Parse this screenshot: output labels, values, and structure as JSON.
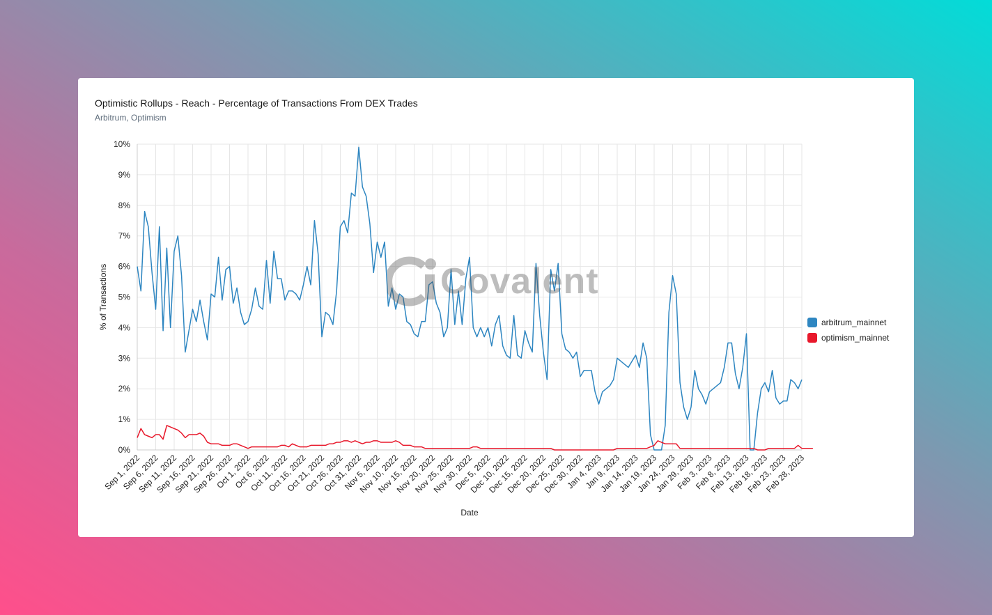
{
  "card": {
    "title": "Optimistic Rollups - Reach - Percentage of Transactions From DEX Trades",
    "subtitle": "Arbitrum, Optimism"
  },
  "watermark": {
    "text": "Covalent"
  },
  "chart_data": {
    "type": "line",
    "xlabel": "Date",
    "ylabel": "% of Transactions",
    "ylim": [
      0,
      10
    ],
    "y_ticks": [
      "0%",
      "1%",
      "2%",
      "3%",
      "4%",
      "5%",
      "6%",
      "7%",
      "8%",
      "9%",
      "10%"
    ],
    "x_tick_labels": [
      "Sep 1, 2022",
      "Sep 6, 2022",
      "Sep 11, 2022",
      "Sep 16, 2022",
      "Sep 21, 2022",
      "Sep 26, 2022",
      "Oct 1, 2022",
      "Oct 6, 2022",
      "Oct 11, 2022",
      "Oct 16, 2022",
      "Oct 21, 2022",
      "Oct 26, 2022",
      "Oct 31, 2022",
      "Nov 5, 2022",
      "Nov 10, 2022",
      "Nov 15, 2022",
      "Nov 20, 2022",
      "Nov 25, 2022",
      "Nov 30, 2022",
      "Dec 5, 2022",
      "Dec 10, 2022",
      "Dec 15, 2022",
      "Dec 20, 2022",
      "Dec 25, 2022",
      "Dec 30, 2022",
      "Jan 4, 2023",
      "Jan 9, 2023",
      "Jan 14, 2023",
      "Jan 19, 2023",
      "Jan 24, 2023",
      "Jan 29, 2023",
      "Feb 3, 2023",
      "Feb 8, 2023",
      "Feb 13, 2023",
      "Feb 18, 2023",
      "Feb 23, 2023",
      "Feb 28, 2023"
    ],
    "x_start": "2022-09-01",
    "x_end": "2023-02-28",
    "grid": true,
    "legend_position": "right",
    "series": [
      {
        "name": "arbitrum_mainnet",
        "color": "#2e86c1",
        "values": [
          6.0,
          5.2,
          7.8,
          7.3,
          5.8,
          4.6,
          7.3,
          3.9,
          6.6,
          4.0,
          6.5,
          7.0,
          5.7,
          3.2,
          3.9,
          4.6,
          4.2,
          4.9,
          4.2,
          3.6,
          5.1,
          5.0,
          6.3,
          4.9,
          5.9,
          6.0,
          4.8,
          5.3,
          4.5,
          4.1,
          4.2,
          4.6,
          5.3,
          4.7,
          4.6,
          6.2,
          4.8,
          6.5,
          5.6,
          5.6,
          4.9,
          5.2,
          5.2,
          5.1,
          4.9,
          5.4,
          6.0,
          5.4,
          7.5,
          6.4,
          3.7,
          4.5,
          4.4,
          4.1,
          5.2,
          7.3,
          7.5,
          7.1,
          8.4,
          8.3,
          9.9,
          8.6,
          8.3,
          7.4,
          5.8,
          6.8,
          6.3,
          6.8,
          4.7,
          5.3,
          4.6,
          5.1,
          5.0,
          4.2,
          4.1,
          3.8,
          3.7,
          4.2,
          4.2,
          5.4,
          5.5,
          4.8,
          4.5,
          3.7,
          4.0,
          5.9,
          4.1,
          5.2,
          4.1,
          5.6,
          6.3,
          4.0,
          3.7,
          4.0,
          3.7,
          4.0,
          3.4,
          4.1,
          4.4,
          3.4,
          3.1,
          3.0,
          4.4,
          3.1,
          3.0,
          3.9,
          3.5,
          3.2,
          6.1,
          4.4,
          3.2,
          2.3,
          5.9,
          5.2,
          6.1,
          3.8,
          3.3,
          3.2,
          3.0,
          3.2,
          2.4,
          2.6,
          2.6,
          2.6,
          1.9,
          1.5,
          1.9,
          2.0,
          2.1,
          2.3,
          3.0,
          2.9,
          2.8,
          2.7,
          2.9,
          3.1,
          2.7,
          3.5,
          3.0,
          0.5,
          0.0,
          0.0,
          0.0,
          0.8,
          4.5,
          5.7,
          5.1,
          2.2,
          1.4,
          1.0,
          1.4,
          2.6,
          2.0,
          1.8,
          1.5,
          1.9,
          2.0,
          2.1,
          2.2,
          2.7,
          3.5,
          3.5,
          2.5,
          2.0,
          2.7,
          3.8,
          0.0,
          0.0,
          1.2,
          2.0,
          2.2,
          1.9,
          2.6,
          1.7,
          1.5,
          1.6,
          1.6,
          2.3,
          2.2,
          2.0,
          2.3
        ]
      },
      {
        "name": "optimism_mainnet",
        "color": "#e8182b",
        "values": [
          0.4,
          0.7,
          0.5,
          0.45,
          0.4,
          0.5,
          0.5,
          0.35,
          0.8,
          0.75,
          0.7,
          0.65,
          0.55,
          0.4,
          0.5,
          0.5,
          0.5,
          0.55,
          0.45,
          0.25,
          0.2,
          0.2,
          0.2,
          0.15,
          0.15,
          0.15,
          0.2,
          0.2,
          0.15,
          0.1,
          0.05,
          0.1,
          0.1,
          0.1,
          0.1,
          0.1,
          0.1,
          0.1,
          0.1,
          0.15,
          0.15,
          0.1,
          0.2,
          0.15,
          0.1,
          0.1,
          0.1,
          0.15,
          0.15,
          0.15,
          0.15,
          0.15,
          0.2,
          0.2,
          0.25,
          0.25,
          0.3,
          0.3,
          0.25,
          0.3,
          0.25,
          0.2,
          0.25,
          0.25,
          0.3,
          0.3,
          0.25,
          0.25,
          0.25,
          0.25,
          0.3,
          0.25,
          0.15,
          0.15,
          0.15,
          0.1,
          0.1,
          0.1,
          0.05,
          0.05,
          0.05,
          0.05,
          0.05,
          0.05,
          0.05,
          0.05,
          0.05,
          0.05,
          0.05,
          0.05,
          0.05,
          0.1,
          0.1,
          0.05,
          0.05,
          0.05,
          0.05,
          0.05,
          0.05,
          0.05,
          0.05,
          0.05,
          0.05,
          0.05,
          0.05,
          0.05,
          0.05,
          0.05,
          0.05,
          0.05,
          0.05,
          0.05,
          0.05,
          0.0,
          0.0,
          0.0,
          0.0,
          0.0,
          0.0,
          0.0,
          0.0,
          0.0,
          0.0,
          0.0,
          0.0,
          0.0,
          0.0,
          0.0,
          0.0,
          0.0,
          0.05,
          0.05,
          0.05,
          0.05,
          0.05,
          0.05,
          0.05,
          0.05,
          0.05,
          0.1,
          0.15,
          0.3,
          0.25,
          0.2,
          0.2,
          0.2,
          0.2,
          0.05,
          0.05,
          0.05,
          0.05,
          0.05,
          0.05,
          0.05,
          0.05,
          0.05,
          0.05,
          0.05,
          0.05,
          0.05,
          0.05,
          0.05,
          0.05,
          0.05,
          0.05,
          0.05,
          0.05,
          0.05,
          0.0,
          0.0,
          0.0,
          0.05,
          0.05,
          0.05,
          0.05,
          0.05,
          0.05,
          0.05,
          0.05,
          0.15,
          0.05,
          0.05,
          0.05,
          0.05
        ]
      }
    ]
  }
}
